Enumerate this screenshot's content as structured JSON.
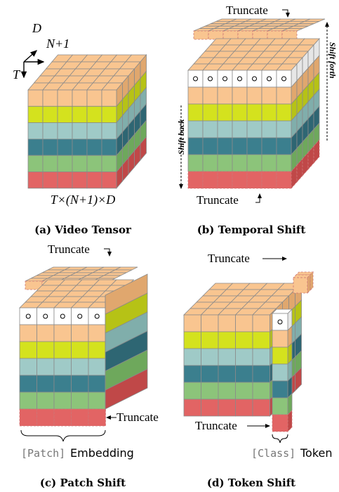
{
  "panel_a": {
    "axis_d": "D",
    "axis_n": "N+1",
    "axis_t": "T",
    "shape": "T×(N+1)×D",
    "caption": "(a) Video Tensor"
  },
  "panel_b": {
    "truncate_top": "Truncate",
    "truncate_bottom": "Truncate",
    "shift_forth": "Shift forth",
    "shift_back": "Shift back",
    "caption": "(b) Temporal Shift"
  },
  "panel_c": {
    "truncate_top": "Truncate",
    "truncate_side": "Truncate",
    "embedding_bracket": "[Patch]",
    "embedding_label": "Embedding",
    "caption": "(c) Patch Shift"
  },
  "panel_d": {
    "truncate_top": "Truncate",
    "truncate_bottom": "Truncate",
    "token_bracket": "[Class]",
    "token_label": "Token",
    "caption": "(d) Token Shift"
  }
}
